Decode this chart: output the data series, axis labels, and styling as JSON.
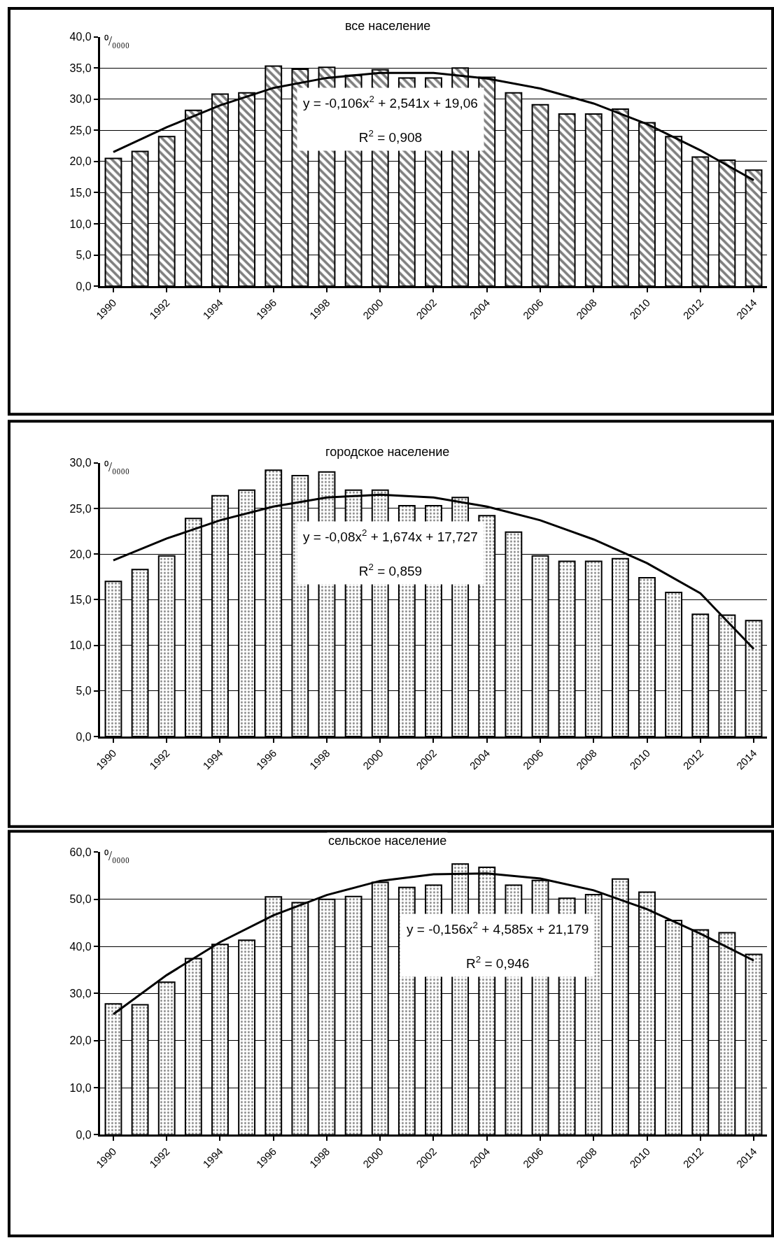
{
  "chart_data": [
    {
      "type": "bar",
      "title": "все население",
      "ylabel": "⁰/₀₀₀₀",
      "x": [
        1990,
        1991,
        1992,
        1993,
        1994,
        1995,
        1996,
        1997,
        1998,
        1999,
        2000,
        2001,
        2002,
        2003,
        2004,
        2005,
        2006,
        2007,
        2008,
        2009,
        2010,
        2011,
        2012,
        2013,
        2014
      ],
      "series": [
        {
          "color": "#000000",
          "values": [
            20.5,
            21.6,
            24.0,
            28.2,
            30.8,
            31.0,
            35.3,
            34.8,
            35.1,
            33.8,
            34.7,
            33.4,
            33.4,
            35.0,
            33.5,
            31.0,
            29.1,
            27.6,
            27.6,
            28.4,
            26.2,
            24.0,
            20.7,
            20.2,
            18.6
          ]
        },
        {
          "type": "line",
          "color": "#000000",
          "marker": "none",
          "x": [
            1990,
            1992,
            1994,
            1996,
            1998,
            2000,
            2002,
            2004,
            2006,
            2008,
            2010,
            2012,
            2014
          ],
          "values": [
            21.5,
            25.5,
            29.0,
            31.8,
            33.4,
            34.2,
            34.2,
            33.3,
            31.7,
            29.3,
            26.0,
            21.8,
            17.0
          ]
        }
      ],
      "annotations": [
        "y = -0,106x$^{2}$ + 2,541x + 19,06",
        "R$^{2}$ = 0,908"
      ],
      "xlim": [
        1989.5,
        2014.5
      ],
      "xticks": [
        1990,
        1992,
        1994,
        1996,
        1998,
        2000,
        2002,
        2004,
        2006,
        2008,
        2010,
        2012,
        2014
      ],
      "ylim": [
        0,
        40
      ],
      "yticks": [
        {
          "value": 0,
          "label": "0,0"
        },
        {
          "value": 5,
          "label": "5,0"
        },
        {
          "value": 10,
          "label": "10,0"
        },
        {
          "value": 15,
          "label": "15,0"
        },
        {
          "value": 20,
          "label": "20,0"
        },
        {
          "value": 25,
          "label": "25,0"
        },
        {
          "value": 30,
          "label": "30,0"
        },
        {
          "value": 35,
          "label": "35,0"
        },
        {
          "value": 40,
          "label": "40,0"
        }
      ],
      "grid": "y"
    },
    {
      "type": "bar",
      "title": "городское население",
      "ylabel": "⁰/₀₀₀₀",
      "x": [
        1990,
        1991,
        1992,
        1993,
        1994,
        1995,
        1996,
        1997,
        1998,
        1999,
        2000,
        2001,
        2002,
        2003,
        2004,
        2005,
        2006,
        2007,
        2008,
        2009,
        2010,
        2011,
        2012,
        2013,
        2014
      ],
      "series": [
        {
          "color": "#000000",
          "values": [
            17.0,
            18.3,
            19.8,
            23.9,
            26.4,
            27.0,
            29.2,
            28.6,
            29.0,
            27.0,
            27.0,
            25.3,
            25.3,
            26.2,
            24.2,
            22.4,
            19.8,
            19.2,
            19.2,
            19.5,
            17.4,
            15.8,
            13.4,
            13.3,
            12.7
          ]
        },
        {
          "type": "line",
          "color": "#000000",
          "marker": "none",
          "x": [
            1990,
            1992,
            1994,
            1996,
            1998,
            2000,
            2002,
            2004,
            2006,
            2008,
            2010,
            2012,
            2014
          ],
          "values": [
            19.3,
            21.7,
            23.7,
            25.2,
            26.2,
            26.5,
            26.2,
            25.2,
            23.7,
            21.6,
            19.0,
            15.7,
            9.6
          ]
        }
      ],
      "annotations": [
        "y = -0,08x$^{2}$ + 1,674x + 17,727",
        "R$^{2}$ = 0,859"
      ],
      "xlim": [
        1989.5,
        2014.5
      ],
      "xticks": [
        1990,
        1992,
        1994,
        1996,
        1998,
        2000,
        2002,
        2004,
        2006,
        2008,
        2010,
        2012,
        2014
      ],
      "ylim": [
        0,
        30
      ],
      "yticks": [
        {
          "value": 0,
          "label": "0,0"
        },
        {
          "value": 5,
          "label": "5,0"
        },
        {
          "value": 10,
          "label": "10,0"
        },
        {
          "value": 15,
          "label": "15,0"
        },
        {
          "value": 20,
          "label": "20,0"
        },
        {
          "value": 25,
          "label": "25,0"
        },
        {
          "value": 30,
          "label": "30,0"
        }
      ],
      "grid": "y"
    },
    {
      "type": "bar",
      "title": "сельское население",
      "ylabel": "⁰/₀₀₀₀",
      "x": [
        1990,
        1991,
        1992,
        1993,
        1994,
        1995,
        1996,
        1997,
        1998,
        1999,
        2000,
        2001,
        2002,
        2003,
        2004,
        2005,
        2006,
        2007,
        2008,
        2009,
        2010,
        2011,
        2012,
        2013,
        2014
      ],
      "series": [
        {
          "color": "#000000",
          "values": [
            27.8,
            27.6,
            32.4,
            37.4,
            40.4,
            41.3,
            50.5,
            49.3,
            50.0,
            50.6,
            53.6,
            52.5,
            53.0,
            57.5,
            56.8,
            53.0,
            54.0,
            50.2,
            51.0,
            54.3,
            51.5,
            45.5,
            43.5,
            42.9,
            38.3
          ]
        },
        {
          "type": "line",
          "color": "#000000",
          "marker": "none",
          "x": [
            1990,
            1992,
            1994,
            1996,
            1998,
            2000,
            2002,
            2004,
            2006,
            2008,
            2010,
            2012,
            2014
          ],
          "values": [
            25.6,
            33.9,
            40.9,
            46.6,
            50.9,
            53.9,
            55.3,
            55.5,
            54.4,
            51.9,
            47.9,
            42.7,
            37.0
          ]
        }
      ],
      "annotations": [
        "y = -0,156x$^{2}$ + 4,585x + 21,179",
        "R$^{2}$ = 0,946"
      ],
      "xlim": [
        1989.5,
        2014.5
      ],
      "xticks": [
        1990,
        1992,
        1994,
        1996,
        1998,
        2000,
        2002,
        2004,
        2006,
        2008,
        2010,
        2012,
        2014
      ],
      "ylim": [
        0,
        60
      ],
      "yticks": [
        {
          "value": 0,
          "label": "0,0"
        },
        {
          "value": 10,
          "label": "10,0"
        },
        {
          "value": 20,
          "label": "20,0"
        },
        {
          "value": 30,
          "label": "30,0"
        },
        {
          "value": 40,
          "label": "40,0"
        },
        {
          "value": 50,
          "label": "50,0"
        },
        {
          "value": 60,
          "label": "60,0"
        }
      ],
      "grid": "y"
    }
  ]
}
